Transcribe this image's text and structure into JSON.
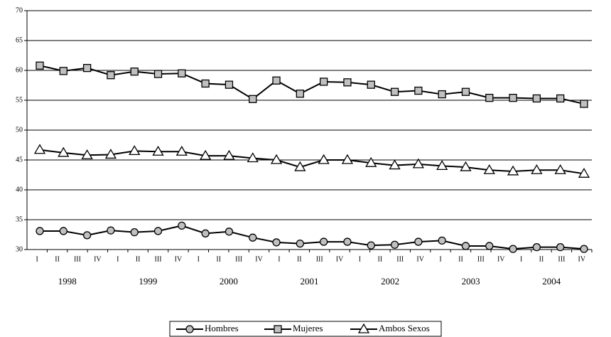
{
  "chart_data": {
    "type": "line",
    "x_tick_labels": [
      "I",
      "II",
      "III",
      "IV",
      "I",
      "II",
      "III",
      "IV",
      "I",
      "II",
      "III",
      "IV",
      "I",
      "II",
      "III",
      "IV",
      "I",
      "II",
      "III",
      "IV",
      "I",
      "II",
      "III",
      "IV",
      "I",
      "II",
      "III",
      "IV"
    ],
    "year_labels": [
      "1998",
      "1999",
      "2000",
      "2001",
      "2002",
      "2003",
      "2004"
    ],
    "ylim": [
      30,
      70
    ],
    "yticks": [
      30,
      35,
      40,
      45,
      50,
      55,
      60,
      65,
      70
    ],
    "grid": true,
    "legend": "bottom",
    "series": [
      {
        "name": "Hombres",
        "color": "#000000",
        "marker": "circle",
        "marker_fill": "#c0c0c0",
        "values": [
          33.1,
          33.1,
          32.4,
          33.2,
          32.9,
          33.1,
          34.0,
          32.7,
          33.0,
          32.0,
          31.2,
          31.0,
          31.3,
          31.3,
          30.7,
          30.8,
          31.3,
          31.5,
          30.6,
          30.6,
          30.1,
          30.4,
          30.4,
          30.1
        ]
      },
      {
        "name": "Mujeres",
        "color": "#000000",
        "marker": "square",
        "marker_fill": "#c0c0c0",
        "values": [
          60.8,
          59.9,
          60.4,
          59.2,
          59.8,
          59.4,
          59.5,
          57.8,
          57.6,
          55.2,
          58.3,
          56.1,
          58.1,
          58.0,
          57.6,
          56.4,
          56.6,
          56.0,
          56.4,
          55.4,
          55.4,
          55.3,
          55.3,
          54.4
        ]
      },
      {
        "name": "Ambos Sexos",
        "color": "#000000",
        "marker": "triangle",
        "marker_fill": "#ffffff",
        "values": [
          46.7,
          46.2,
          45.8,
          45.9,
          46.5,
          46.4,
          46.4,
          45.7,
          45.7,
          45.3,
          45.0,
          43.8,
          45.0,
          45.0,
          44.5,
          44.1,
          44.3,
          44.0,
          43.8,
          43.3,
          43.1,
          43.3,
          43.3,
          42.7
        ]
      }
    ]
  }
}
